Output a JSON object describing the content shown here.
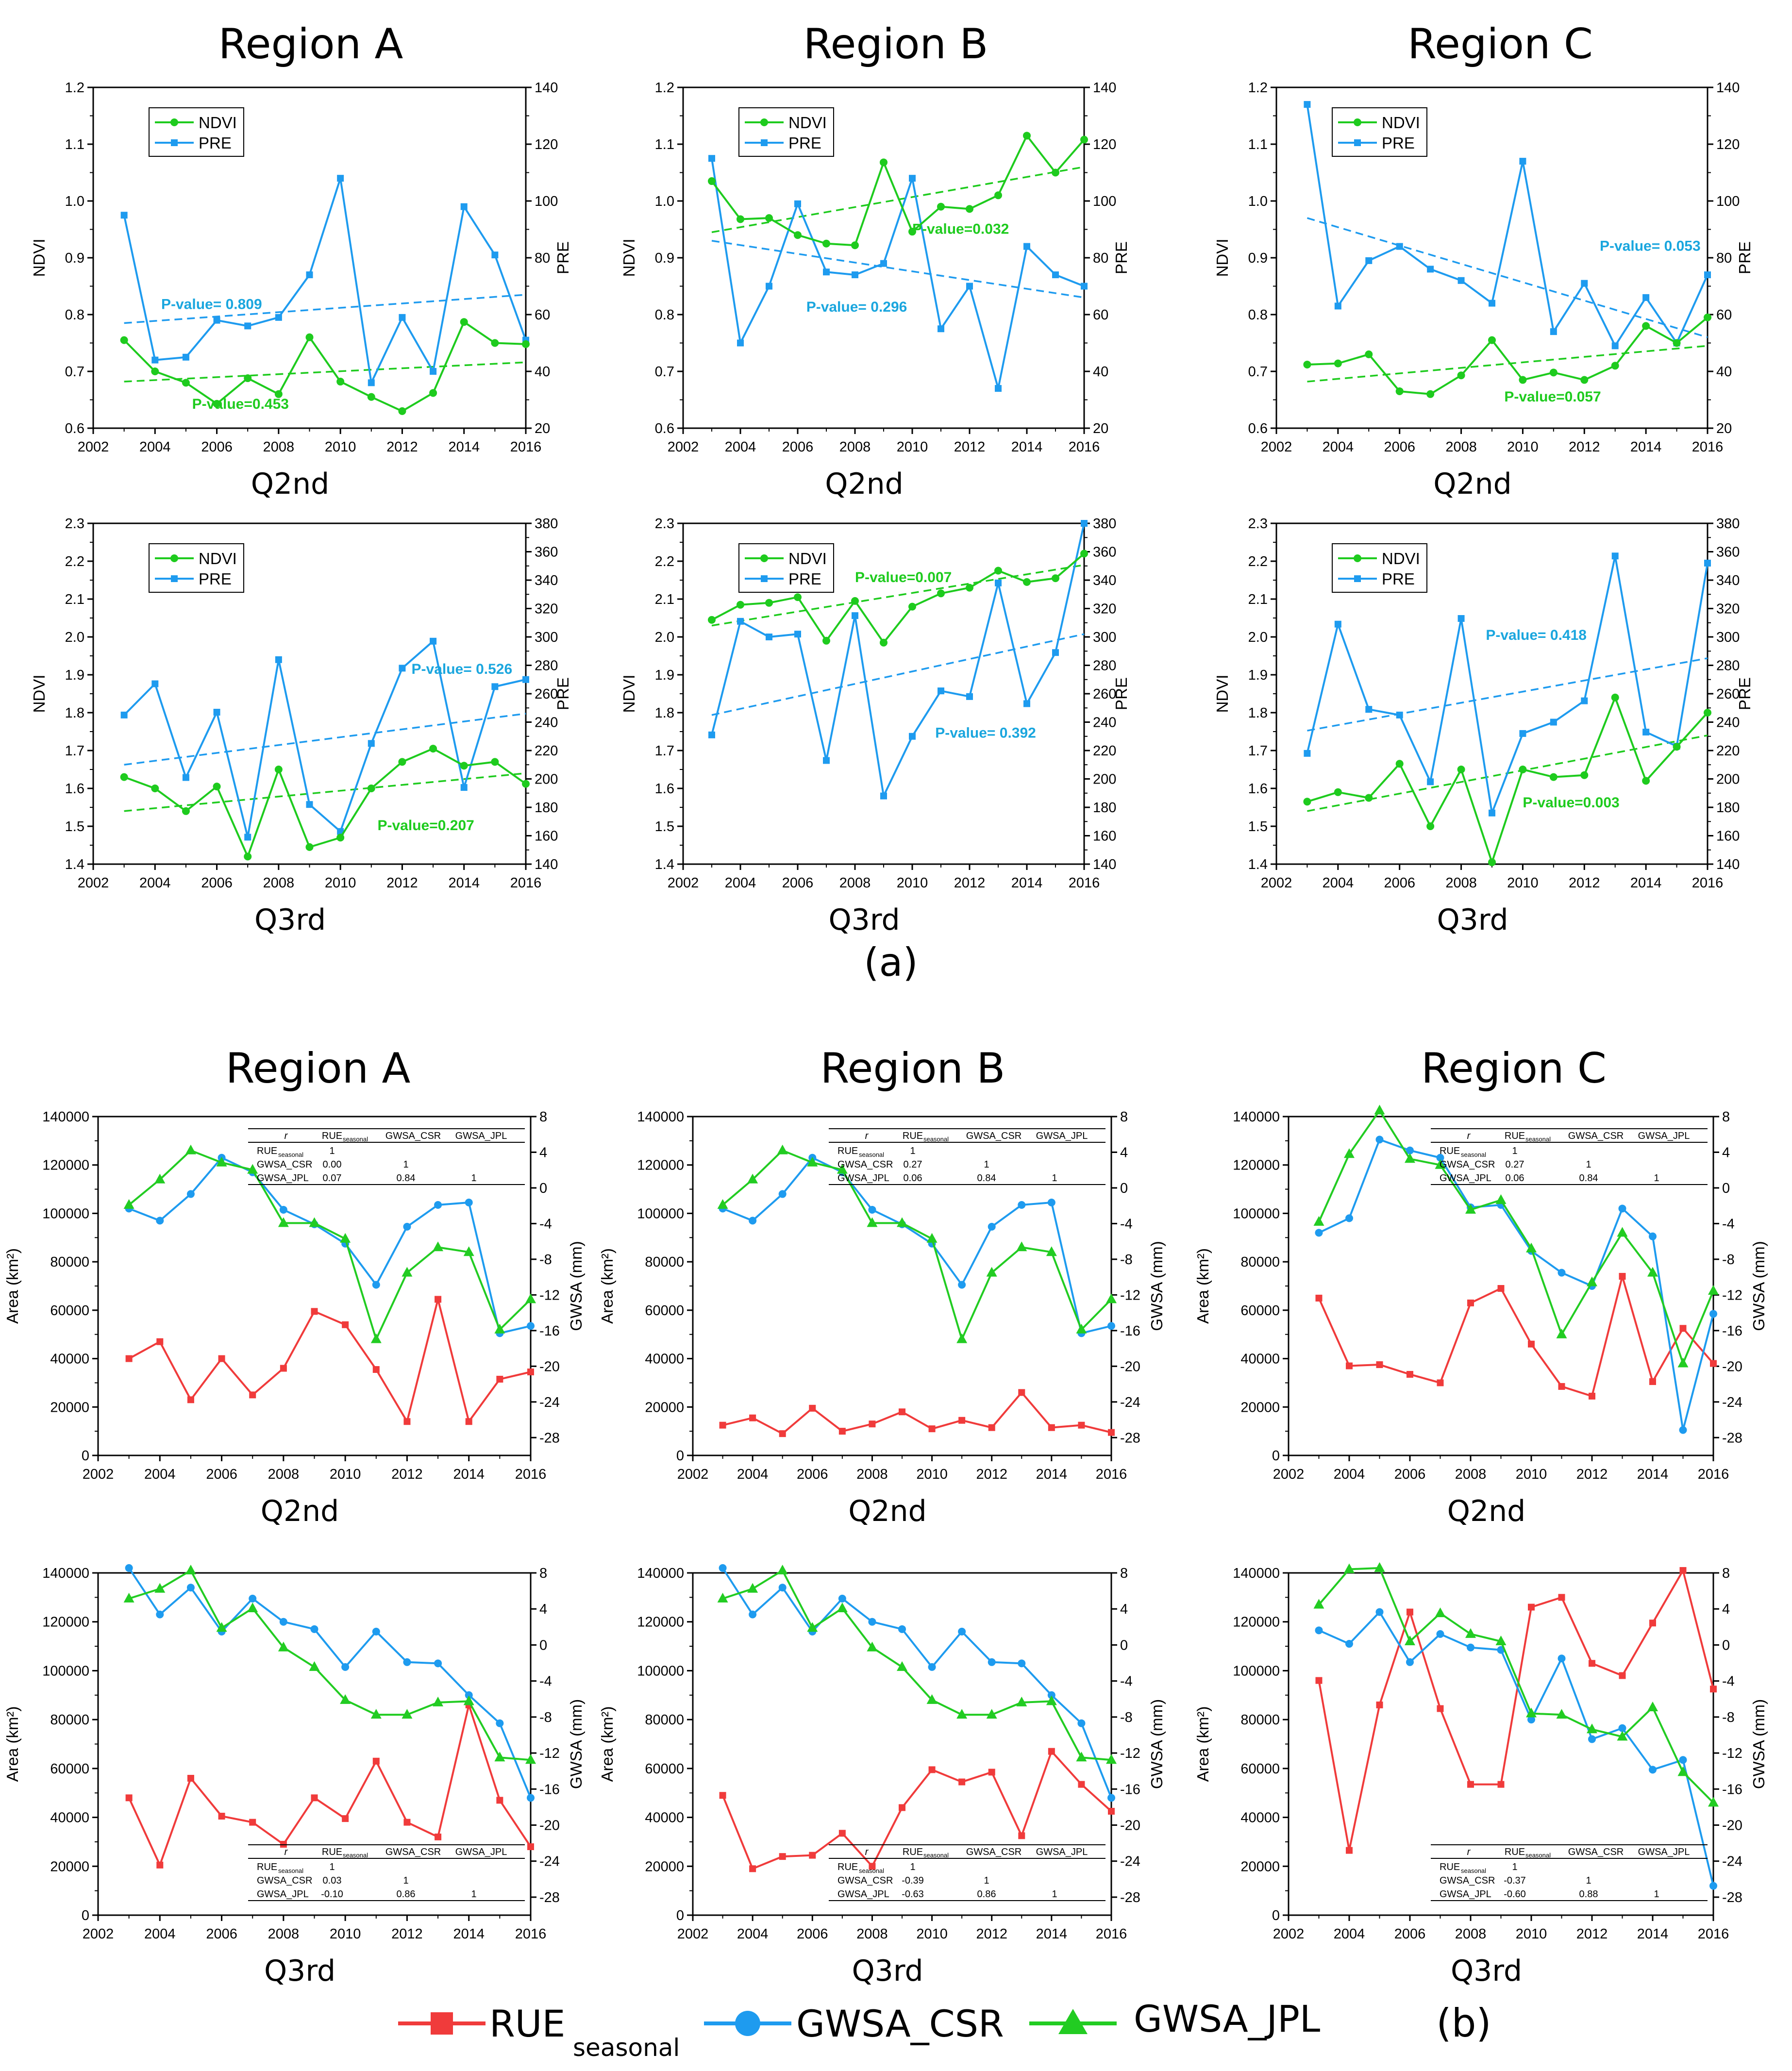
{
  "colors": {
    "ndvi": "#1ecb1e",
    "pre": "#1e9bef",
    "rue": "#f03b3b",
    "gwsa_csr": "#1e9bef",
    "gwsa_jpl": "#22cc22"
  },
  "labels": {
    "panel_a": "(a)",
    "panel_b": "(b)",
    "ndvi_axis": "NDVI",
    "pre_axis": "PRE",
    "area_axis": "Area (km²)",
    "gwsa_axis": "GWSA (mm)",
    "ndvi_legend": "NDVI",
    "pre_legend": "PRE",
    "rue_legend": "RUE",
    "rue_legend_sub": "seasonal",
    "csr_legend": "GWSA_CSR",
    "jpl_legend": "GWSA_JPL",
    "table_headers": [
      "r",
      "RUE",
      "GWSA_CSR",
      "GWSA_JPL"
    ],
    "table_header_sub": "seasonal",
    "table_rows": [
      "RUE",
      "GWSA_CSR",
      "GWSA_JPL"
    ]
  },
  "chart_data": [
    {
      "id": "a_A_q2",
      "type": "line",
      "title": "Region A",
      "xlabel": "Q2nd",
      "ylabel": "NDVI",
      "y2label": "PRE",
      "xlim": [
        2002,
        2016
      ],
      "ylim": [
        0.6,
        1.2
      ],
      "y2lim": [
        20,
        140
      ],
      "x": [
        2003,
        2004,
        2005,
        2006,
        2007,
        2008,
        2009,
        2010,
        2011,
        2012,
        2013,
        2014,
        2015,
        2016
      ],
      "ndvi": [
        0.755,
        0.7,
        0.68,
        0.643,
        0.688,
        0.66,
        0.76,
        0.682,
        0.655,
        0.63,
        0.662,
        0.787,
        0.75,
        0.748
      ],
      "pre": [
        95,
        44,
        45,
        58,
        56,
        59,
        74,
        108,
        36,
        59,
        40,
        98,
        81,
        51
      ],
      "trend_ndvi": [
        0.682,
        0.716
      ],
      "trend_pre": [
        57,
        67
      ],
      "pvalue_ndvi": "P-value=0.453",
      "pvalue_pre": "P-value= 0.809"
    },
    {
      "id": "a_B_q2",
      "type": "line",
      "title": "Region B",
      "xlabel": "Q2nd",
      "ylabel": "NDVI",
      "y2label": "PRE",
      "xlim": [
        2002,
        2016
      ],
      "ylim": [
        0.6,
        1.2
      ],
      "y2lim": [
        20,
        140
      ],
      "x": [
        2003,
        2004,
        2005,
        2006,
        2007,
        2008,
        2009,
        2010,
        2011,
        2012,
        2013,
        2014,
        2015,
        2016
      ],
      "ndvi": [
        1.035,
        0.968,
        0.97,
        0.94,
        0.925,
        0.922,
        1.068,
        0.946,
        0.99,
        0.986,
        1.01,
        1.115,
        1.05,
        1.108
      ],
      "pre": [
        115,
        50,
        70,
        99,
        75,
        74,
        78,
        108,
        55,
        70,
        34,
        84,
        74,
        70
      ],
      "trend_ndvi": [
        0.945,
        1.06
      ],
      "trend_pre": [
        86,
        66
      ],
      "pvalue_ndvi": "P-value=0.032",
      "pvalue_pre": "P-value= 0.296"
    },
    {
      "id": "a_C_q2",
      "type": "line",
      "title": "Region C",
      "xlabel": "Q2nd",
      "ylabel": "NDVI",
      "y2label": "PRE",
      "xlim": [
        2002,
        2016
      ],
      "ylim": [
        0.6,
        1.2
      ],
      "y2lim": [
        20,
        140
      ],
      "x": [
        2003,
        2004,
        2005,
        2006,
        2007,
        2008,
        2009,
        2010,
        2011,
        2012,
        2013,
        2014,
        2015,
        2016
      ],
      "ndvi": [
        0.712,
        0.714,
        0.73,
        0.665,
        0.66,
        0.693,
        0.755,
        0.685,
        0.698,
        0.685,
        0.71,
        0.78,
        0.75,
        0.795
      ],
      "pre": [
        134,
        63,
        79,
        84,
        76,
        72,
        64,
        114,
        54,
        71,
        49,
        66,
        50,
        74
      ],
      "trend_ndvi": [
        0.682,
        0.745
      ],
      "trend_pre": [
        94,
        52
      ],
      "pvalue_ndvi": "P-value=0.057",
      "pvalue_pre": "P-value= 0.053"
    },
    {
      "id": "a_A_q3",
      "type": "line",
      "title": "",
      "xlabel": "Q3rd",
      "ylabel": "NDVI",
      "y2label": "PRE",
      "xlim": [
        2002,
        2016
      ],
      "ylim": [
        1.4,
        2.3
      ],
      "y2lim": [
        140,
        380
      ],
      "x": [
        2003,
        2004,
        2005,
        2006,
        2007,
        2008,
        2009,
        2010,
        2011,
        2012,
        2013,
        2014,
        2015,
        2016
      ],
      "ndvi": [
        1.63,
        1.6,
        1.54,
        1.605,
        1.42,
        1.65,
        1.445,
        1.47,
        1.6,
        1.67,
        1.705,
        1.66,
        1.67,
        1.612
      ],
      "pre": [
        245,
        267,
        201,
        247,
        159,
        284,
        182,
        163,
        225,
        278,
        297,
        194,
        265,
        270
      ],
      "trend_ndvi": [
        1.54,
        1.64
      ],
      "trend_pre": [
        210,
        246
      ],
      "pvalue_ndvi": "P-value=0.207",
      "pvalue_pre": "P-value= 0.526"
    },
    {
      "id": "a_B_q3",
      "type": "line",
      "title": "",
      "xlabel": "Q3rd",
      "ylabel": "NDVI",
      "y2label": "PRE",
      "xlim": [
        2002,
        2016
      ],
      "ylim": [
        1.4,
        2.3
      ],
      "y2lim": [
        140,
        380
      ],
      "x": [
        2003,
        2004,
        2005,
        2006,
        2007,
        2008,
        2009,
        2010,
        2011,
        2012,
        2013,
        2014,
        2015,
        2016
      ],
      "ndvi": [
        2.045,
        2.085,
        2.09,
        2.105,
        1.99,
        2.095,
        1.985,
        2.08,
        2.115,
        2.13,
        2.175,
        2.145,
        2.155,
        2.22
      ],
      "pre": [
        231,
        311,
        300,
        302,
        213,
        315,
        188,
        230,
        262,
        258,
        338,
        253,
        289,
        380
      ],
      "trend_ndvi": [
        2.03,
        2.19
      ],
      "trend_pre": [
        245,
        302
      ],
      "pvalue_ndvi": "P-value=0.007",
      "pvalue_pre": "P-value= 0.392"
    },
    {
      "id": "a_C_q3",
      "type": "line",
      "title": "",
      "xlabel": "Q3rd",
      "ylabel": "NDVI",
      "y2label": "PRE",
      "xlim": [
        2002,
        2016
      ],
      "ylim": [
        1.4,
        2.3
      ],
      "y2lim": [
        140,
        380
      ],
      "x": [
        2003,
        2004,
        2005,
        2006,
        2007,
        2008,
        2009,
        2010,
        2011,
        2012,
        2013,
        2014,
        2015,
        2016
      ],
      "ndvi": [
        1.565,
        1.59,
        1.575,
        1.665,
        1.5,
        1.65,
        1.405,
        1.65,
        1.63,
        1.635,
        1.84,
        1.62,
        1.71,
        1.8
      ],
      "pre": [
        218,
        309,
        249,
        245,
        198,
        313,
        176,
        232,
        240,
        255,
        357,
        233,
        223,
        352
      ],
      "trend_ndvi": [
        1.54,
        1.74
      ],
      "trend_pre": [
        234,
        285
      ],
      "pvalue_ndvi": "P-value=0.003",
      "pvalue_pre": "P-value= 0.418"
    },
    {
      "id": "b_A_q2",
      "type": "line",
      "title": "Region A",
      "xlabel": "Q2nd",
      "ylabel": "Area (km²)",
      "y2label": "GWSA (mm)",
      "xlim": [
        2002,
        2016
      ],
      "ylim": [
        0,
        140000
      ],
      "y2lim": [
        -30,
        8
      ],
      "x": [
        2003,
        2004,
        2005,
        2006,
        2007,
        2008,
        2009,
        2010,
        2011,
        2012,
        2013,
        2014,
        2015,
        2016
      ],
      "rue": [
        40000,
        47000,
        23000,
        40000,
        25000,
        36000,
        59500,
        54000,
        35500,
        14000,
        64500,
        14000,
        31500,
        34500
      ],
      "gwsa_csr": [
        102000,
        97000,
        108000,
        123000,
        117000,
        101500,
        95500,
        87500,
        70500,
        94500,
        103500,
        104500,
        50500,
        53500
      ],
      "gwsa_jpl": [
        103500,
        114000,
        126000,
        121000,
        118000,
        96000,
        96000,
        89500,
        48000,
        75500,
        86000,
        84000,
        52000,
        64500
      ],
      "table": {
        "show": true,
        "pos": "top",
        "rue": [
          "1"
        ],
        "csr": [
          "0.00",
          "1"
        ],
        "jpl": [
          "0.07",
          "0.84",
          "1"
        ]
      }
    },
    {
      "id": "b_B_q2",
      "type": "line",
      "title": "Region B",
      "xlabel": "Q2nd",
      "ylabel": "Area (km²)",
      "y2label": "GWSA (mm)",
      "xlim": [
        2002,
        2016
      ],
      "ylim": [
        0,
        140000
      ],
      "y2lim": [
        -30,
        8
      ],
      "x": [
        2003,
        2004,
        2005,
        2006,
        2007,
        2008,
        2009,
        2010,
        2011,
        2012,
        2013,
        2014,
        2015,
        2016
      ],
      "rue": [
        12500,
        15500,
        9000,
        19500,
        10000,
        13000,
        18000,
        11000,
        14500,
        11500,
        26000,
        11500,
        12500,
        9500
      ],
      "gwsa_csr": [
        102000,
        97000,
        108000,
        123000,
        117000,
        101500,
        95500,
        87500,
        70500,
        94500,
        103500,
        104500,
        50500,
        53500
      ],
      "gwsa_jpl": [
        103500,
        114000,
        126000,
        121000,
        118000,
        96000,
        96000,
        89500,
        48000,
        75500,
        86000,
        84000,
        52000,
        64500
      ],
      "table": {
        "show": true,
        "pos": "top",
        "rue": [
          "1"
        ],
        "csr": [
          "0.27",
          "1"
        ],
        "jpl": [
          "0.06",
          "0.84",
          "1"
        ]
      }
    },
    {
      "id": "b_C_q2",
      "type": "line",
      "title": "Region C",
      "xlabel": "Q2nd",
      "ylabel": "Area (km²)",
      "y2label": "GWSA (mm)",
      "xlim": [
        2002,
        2016
      ],
      "ylim": [
        0,
        140000
      ],
      "y2lim": [
        -30,
        8
      ],
      "x": [
        2003,
        2004,
        2005,
        2006,
        2007,
        2008,
        2009,
        2010,
        2011,
        2012,
        2013,
        2014,
        2015,
        2016
      ],
      "rue": [
        65000,
        37000,
        37500,
        33500,
        30000,
        63000,
        69000,
        46000,
        28500,
        24500,
        74000,
        30500,
        52500,
        38000
      ],
      "gwsa_csr": [
        92000,
        98000,
        130500,
        126000,
        123000,
        102500,
        103500,
        84500,
        75500,
        70000,
        102000,
        90500,
        10500,
        58500
      ],
      "gwsa_jpl": [
        96500,
        124500,
        142500,
        122500,
        120000,
        101500,
        105500,
        85500,
        50000,
        71500,
        92000,
        75500,
        38000,
        68000
      ],
      "table": {
        "show": true,
        "pos": "top",
        "rue": [
          "1"
        ],
        "csr": [
          "0.27",
          "1"
        ],
        "jpl": [
          "0.06",
          "0.84",
          "1"
        ]
      }
    },
    {
      "id": "b_A_q3",
      "type": "line",
      "title": "",
      "xlabel": "Q3rd",
      "ylabel": "Area (km²)",
      "y2label": "GWSA (mm)",
      "xlim": [
        2002,
        2016
      ],
      "ylim": [
        0,
        140000
      ],
      "y2lim": [
        -30,
        8
      ],
      "x": [
        2003,
        2004,
        2005,
        2006,
        2007,
        2008,
        2009,
        2010,
        2011,
        2012,
        2013,
        2014,
        2015,
        2016
      ],
      "rue": [
        48000,
        20500,
        56000,
        40500,
        38000,
        29000,
        48000,
        39500,
        63000,
        38000,
        32000,
        86000,
        47000,
        28000
      ],
      "gwsa_csr": [
        142000,
        123000,
        134000,
        116000,
        129500,
        120000,
        117000,
        101500,
        116000,
        103500,
        103000,
        90000,
        78500,
        48000
      ],
      "gwsa_jpl": [
        129500,
        133500,
        141000,
        117500,
        125500,
        109500,
        101500,
        88000,
        82000,
        82000,
        87000,
        87500,
        64500,
        63500
      ],
      "table": {
        "show": true,
        "pos": "bottom",
        "rue": [
          "1"
        ],
        "csr": [
          "0.03",
          "1"
        ],
        "jpl": [
          "-0.10",
          "0.86",
          "1"
        ]
      }
    },
    {
      "id": "b_B_q3",
      "type": "line",
      "title": "",
      "xlabel": "Q3rd",
      "ylabel": "Area (km²)",
      "y2label": "GWSA (mm)",
      "xlim": [
        2002,
        2016
      ],
      "ylim": [
        0,
        140000
      ],
      "y2lim": [
        -30,
        8
      ],
      "x": [
        2003,
        2004,
        2005,
        2006,
        2007,
        2008,
        2009,
        2010,
        2011,
        2012,
        2013,
        2014,
        2015,
        2016
      ],
      "rue": [
        49000,
        19000,
        24000,
        24500,
        33500,
        20000,
        44000,
        59500,
        54500,
        58500,
        32500,
        67000,
        53500,
        42500
      ],
      "gwsa_csr": [
        142000,
        123000,
        134000,
        116000,
        129500,
        120000,
        117000,
        101500,
        116000,
        103500,
        103000,
        90000,
        78500,
        48000
      ],
      "gwsa_jpl": [
        129500,
        133500,
        141000,
        117500,
        125500,
        109500,
        101500,
        88000,
        82000,
        82000,
        87000,
        87500,
        64500,
        63500
      ],
      "table": {
        "show": true,
        "pos": "bottom",
        "rue": [
          "1"
        ],
        "csr": [
          "-0.39",
          "1"
        ],
        "jpl": [
          "-0.63",
          "0.86",
          "1"
        ]
      }
    },
    {
      "id": "b_C_q3",
      "type": "line",
      "title": "",
      "xlabel": "Q3rd",
      "ylabel": "Area (km²)",
      "y2label": "GWSA (mm)",
      "xlim": [
        2002,
        2016
      ],
      "ylim": [
        0,
        140000
      ],
      "y2lim": [
        -30,
        8
      ],
      "x": [
        2003,
        2004,
        2005,
        2006,
        2007,
        2008,
        2009,
        2010,
        2011,
        2012,
        2013,
        2014,
        2015,
        2016
      ],
      "rue": [
        96000,
        26500,
        86000,
        124000,
        84500,
        53500,
        53500,
        126000,
        130000,
        103000,
        98000,
        119500,
        141000,
        92500
      ],
      "gwsa_csr": [
        116500,
        111000,
        124000,
        103500,
        115000,
        109500,
        108500,
        80000,
        105000,
        72000,
        76500,
        59500,
        63500,
        12000
      ],
      "gwsa_jpl": [
        127000,
        141500,
        142000,
        112000,
        123500,
        115000,
        112000,
        82500,
        82000,
        76000,
        73000,
        85000,
        58500,
        46000
      ],
      "table": {
        "show": true,
        "pos": "bottom",
        "rue": [
          "1"
        ],
        "csr": [
          "-0.37",
          "1"
        ],
        "jpl": [
          "-0.60",
          "0.88",
          "1"
        ]
      }
    }
  ]
}
